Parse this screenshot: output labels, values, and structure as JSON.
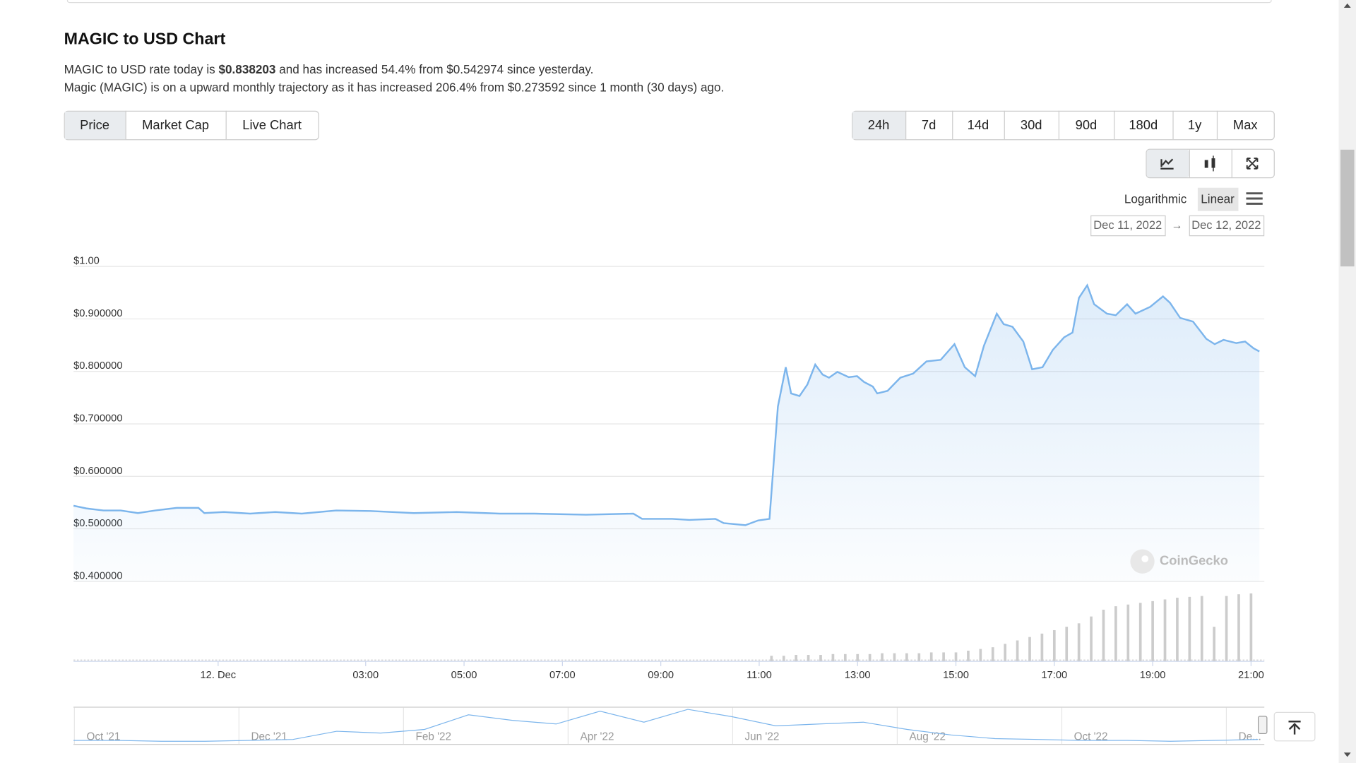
{
  "header": {
    "title": "MAGIC to USD Chart"
  },
  "summary": {
    "line1": [
      "MAGIC to USD rate today is ",
      "$0.838203",
      " and has increased 54.4% from $0.542974 since yesterday."
    ],
    "line2": "Magic (MAGIC) is on a upward monthly trajectory as it has increased 206.4% from $0.273592 since 1 month (30 days) ago."
  },
  "tabs": [
    "Price",
    "Market Cap",
    "Live Chart"
  ],
  "active_tab": 0,
  "ranges": [
    "24h",
    "7d",
    "14d",
    "30d",
    "90d",
    "180d",
    "1y",
    "Max"
  ],
  "active_range": 0,
  "scale_options": [
    "Logarithmic",
    "Linear"
  ],
  "active_scale": 1,
  "date_range": {
    "from": "Dec 11, 2022",
    "separator": "→",
    "to": "Dec 12, 2022"
  },
  "watermark": "CoinGecko",
  "chart_data": {
    "type": "line",
    "color": "#7cb5ec",
    "fill": true,
    "grid": true,
    "x": [
      -2.94,
      -2.68,
      -2.33,
      -1.98,
      -1.63,
      -1.28,
      -0.84,
      -0.4,
      -0.28,
      0.12,
      0.65,
      1.16,
      1.7,
      2.4,
      3.1,
      3.98,
      4.85,
      5.73,
      6.43,
      7.48,
      8.44,
      8.62,
      9.23,
      9.58,
      10.11,
      10.28,
      10.72,
      10.98,
      11.21,
      11.38,
      11.54,
      11.65,
      11.82,
      11.98,
      12.14,
      12.29,
      12.42,
      12.59,
      12.82,
      12.99,
      13.13,
      13.31,
      13.4,
      13.61,
      13.87,
      14.13,
      14.4,
      14.69,
      14.97,
      15.18,
      15.39,
      15.57,
      15.83,
      15.97,
      16.15,
      16.37,
      16.55,
      16.76,
      16.97,
      17.2,
      17.37,
      17.5,
      17.67,
      17.81,
      18.07,
      18.25,
      18.48,
      18.65,
      18.95,
      19.21,
      19.35,
      19.56,
      19.82,
      20.09,
      20.26,
      20.44,
      20.7,
      20.88,
      21.05,
      21.17
    ],
    "values": [
      0.544,
      0.539,
      0.535,
      0.535,
      0.53,
      0.535,
      0.54,
      0.54,
      0.53,
      0.532,
      0.529,
      0.532,
      0.529,
      0.535,
      0.534,
      0.53,
      0.532,
      0.529,
      0.529,
      0.527,
      0.529,
      0.519,
      0.519,
      0.517,
      0.519,
      0.511,
      0.507,
      0.516,
      0.519,
      0.733,
      0.808,
      0.758,
      0.753,
      0.775,
      0.813,
      0.794,
      0.788,
      0.799,
      0.789,
      0.791,
      0.78,
      0.771,
      0.758,
      0.763,
      0.788,
      0.796,
      0.819,
      0.822,
      0.852,
      0.808,
      0.791,
      0.849,
      0.91,
      0.89,
      0.885,
      0.857,
      0.804,
      0.808,
      0.841,
      0.865,
      0.874,
      0.94,
      0.964,
      0.928,
      0.91,
      0.907,
      0.928,
      0.91,
      0.923,
      0.943,
      0.931,
      0.902,
      0.895,
      0.862,
      0.852,
      0.86,
      0.854,
      0.857,
      0.844,
      0.838
    ],
    "xlim": [
      -2.94,
      21.27
    ],
    "xticks": [
      {
        "value": 0,
        "label": "12. Dec"
      },
      {
        "value": 3,
        "label": "03:00"
      },
      {
        "value": 5,
        "label": "05:00"
      },
      {
        "value": 7,
        "label": "07:00"
      },
      {
        "value": 9,
        "label": "09:00"
      },
      {
        "value": 11,
        "label": "11:00"
      },
      {
        "value": 13,
        "label": "13:00"
      },
      {
        "value": 15,
        "label": "15:00"
      },
      {
        "value": 17,
        "label": "17:00"
      },
      {
        "value": 19,
        "label": "19:00"
      },
      {
        "value": 21,
        "label": "21:00"
      }
    ],
    "ylim": [
      0.4,
      1.0
    ],
    "yticks": [
      {
        "value": 1.0,
        "label": "$1.00"
      },
      {
        "value": 0.9,
        "label": "$0.900000"
      },
      {
        "value": 0.8,
        "label": "$0.800000"
      },
      {
        "value": 0.7,
        "label": "$0.700000"
      },
      {
        "value": 0.6,
        "label": "$0.600000"
      },
      {
        "value": 0.5,
        "label": "$0.500000"
      },
      {
        "value": 0.4,
        "label": "$0.400000"
      }
    ],
    "volume": {
      "color": "#cccccc",
      "x": [
        11.25,
        11.5,
        11.75,
        12,
        12.25,
        12.5,
        12.75,
        13,
        13.25,
        13.5,
        13.75,
        14,
        14.25,
        14.5,
        14.75,
        15,
        15.25,
        15.5,
        15.75,
        16,
        16.25,
        16.5,
        16.75,
        17,
        17.25,
        17.5,
        17.75,
        18,
        18.25,
        18.5,
        18.75,
        19,
        19.25,
        19.5,
        19.75,
        20,
        20.25,
        20.5,
        20.75,
        21
      ],
      "values": [
        6,
        6,
        7,
        7,
        7,
        8,
        8,
        8,
        8,
        9,
        9,
        9,
        9,
        10,
        10,
        10,
        12,
        14,
        16,
        20,
        24,
        28,
        32,
        36,
        40,
        44,
        52,
        60,
        64,
        66,
        68,
        70,
        72,
        74,
        75,
        76,
        40,
        76,
        78,
        79
      ]
    },
    "navigator": {
      "labels": [
        "Oct '21",
        "Dec '21",
        "Feb '22",
        "Apr '22",
        "Jun '22",
        "Aug '22",
        "Oct '22",
        "De..."
      ],
      "values": [
        2,
        2,
        1,
        1,
        2,
        3,
        12,
        10,
        14,
        30,
        24,
        20,
        34,
        22,
        36,
        28,
        18,
        20,
        22,
        14,
        8,
        4,
        3,
        2,
        2,
        1,
        2,
        3
      ]
    }
  }
}
